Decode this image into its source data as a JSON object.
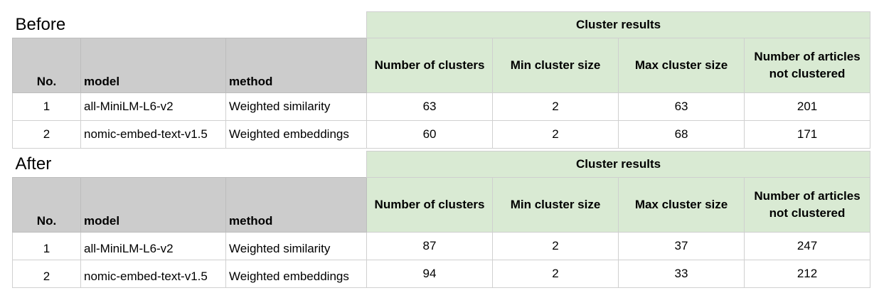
{
  "tables": [
    {
      "title": "Before",
      "cluster_header": "Cluster results",
      "headers": [
        "No.",
        "model",
        "method",
        "Number of clusters",
        "Min cluster size",
        "Max cluster size",
        "Number of articles not clustered"
      ],
      "rows": [
        [
          "1",
          "all-MiniLM-L6-v2",
          "Weighted similarity",
          "63",
          "2",
          "63",
          "201"
        ],
        [
          "2",
          "nomic-embed-text-v1.5",
          "Weighted embeddings",
          "60",
          "2",
          "68",
          "171"
        ]
      ]
    },
    {
      "title": "After",
      "cluster_header": "Cluster results",
      "headers": [
        "No.",
        "model",
        "method",
        "Number of clusters",
        "Min cluster size",
        "Max cluster size",
        "Number of articles not clustered"
      ],
      "rows": [
        [
          "1",
          "all-MiniLM-L6-v2",
          "Weighted similarity",
          "87",
          "2",
          "37",
          "247"
        ],
        [
          "2",
          "nomic-embed-text-v1.5",
          "Weighted embeddings",
          "94",
          "2",
          "33",
          "212"
        ]
      ]
    }
  ]
}
